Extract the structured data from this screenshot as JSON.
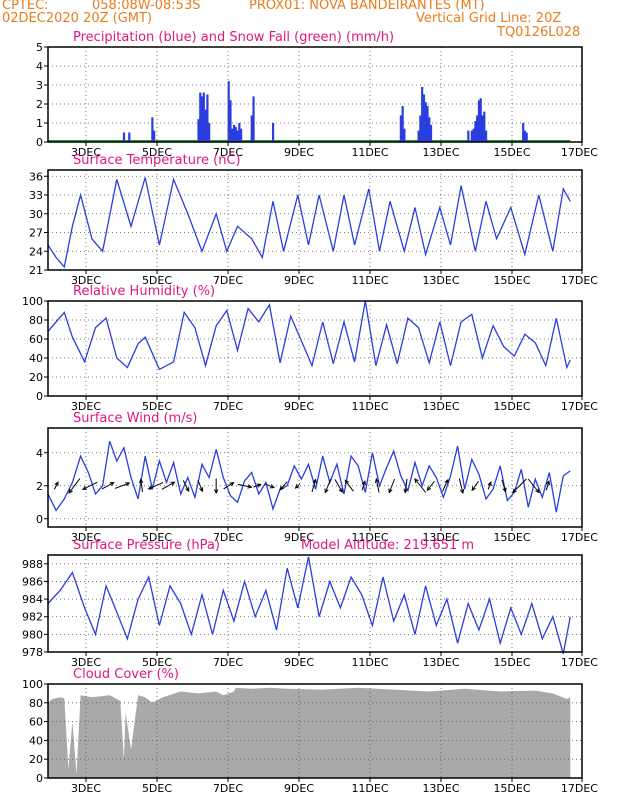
{
  "header": {
    "line1_left": "CPTEC:",
    "line1_coords": "058:08W-08:53S",
    "line1_station": "PROX01: NOVA BANDEIRANTES (MT)",
    "line2_left": "02DEC2020 20Z (GMT)",
    "line2_right": "Vertical Grid Line: 20Z",
    "line3_right": "TQ0126L028"
  },
  "colors": {
    "header": "#e87d1e",
    "title": "#e0177f",
    "series": "#2a3ee0",
    "snow": "#1a9e2c",
    "cloud": "#a9a9a9",
    "arrow": "#000000"
  },
  "chart_data": [
    {
      "type": "bar",
      "title": "Precipitation (blue) and Snow Fall (green) (mm/h)",
      "xlabel": "",
      "ylabel": "",
      "ylim": [
        0,
        5
      ],
      "yticks": [
        0,
        1,
        2,
        3,
        4,
        5
      ],
      "xlim_days": [
        2.4,
        17.0
      ],
      "xticks": [
        "3DEC",
        "5DEC",
        "7DEC",
        "9DEC",
        "11DEC",
        "13DEC",
        "15DEC",
        "17DEC"
      ],
      "grid": "dotted",
      "series": [
        {
          "color": "blue",
          "t": [
            4.4,
            4.55,
            5.2,
            5.25,
            6.5,
            6.55,
            6.6,
            6.65,
            6.7,
            6.75,
            6.8,
            7.35,
            7.4,
            7.45,
            7.5,
            7.55,
            7.6,
            7.65,
            7.7,
            8.0,
            8.05,
            8.6,
            12.2,
            12.25,
            12.3,
            12.7,
            12.75,
            12.8,
            12.85,
            12.9,
            12.95,
            13.0,
            13.05,
            14.1,
            14.2,
            14.25,
            14.3,
            14.35,
            14.4,
            14.45,
            14.5,
            14.55,
            14.6,
            15.65,
            15.7,
            15.75
          ],
          "values": [
            0.5,
            0.5,
            1.3,
            0.6,
            1.2,
            2.6,
            2.4,
            2.6,
            1.7,
            2.5,
            1.0,
            3.2,
            2.2,
            0.7,
            0.9,
            0.8,
            0.6,
            1.0,
            0.7,
            1.4,
            2.4,
            1.0,
            1.4,
            1.9,
            0.7,
            0.6,
            1.4,
            2.9,
            2.5,
            2.1,
            1.9,
            1.3,
            0.9,
            0.6,
            0.6,
            0.7,
            1.1,
            1.4,
            2.2,
            2.3,
            1.4,
            1.6,
            0.6,
            1.0,
            0.6,
            0.5
          ]
        },
        {
          "color": "green",
          "value": 0.05,
          "from": 2.4,
          "to": 17.0
        }
      ]
    },
    {
      "type": "line",
      "title": "Surface Temperature (nC)",
      "xlabel": "",
      "ylabel": "",
      "ylim": [
        21,
        37
      ],
      "yticks": [
        21,
        24,
        27,
        30,
        33,
        36
      ],
      "xlim_days": [
        2.4,
        17.0
      ],
      "xticks": [
        "3DEC",
        "5DEC",
        "7DEC",
        "9DEC",
        "11DEC",
        "13DEC",
        "15DEC",
        "17DEC"
      ],
      "grid": "dotted",
      "t": [
        2.4,
        2.6,
        2.8,
        3.0,
        3.2,
        3.5,
        3.8,
        4.2,
        4.6,
        5.0,
        5.4,
        5.8,
        6.2,
        6.6,
        7.0,
        7.3,
        7.6,
        8.0,
        8.3,
        8.6,
        8.9,
        9.3,
        9.6,
        9.9,
        10.3,
        10.6,
        10.9,
        11.3,
        11.6,
        11.9,
        12.3,
        12.6,
        12.9,
        13.3,
        13.6,
        13.9,
        14.3,
        14.6,
        14.9,
        15.3,
        15.7,
        16.1,
        16.5,
        16.8,
        17.0
      ],
      "values": [
        25.0,
        23.0,
        21.5,
        28.0,
        33.0,
        26.0,
        24.0,
        35.5,
        28.0,
        35.8,
        25.0,
        35.5,
        30.0,
        24.0,
        30.0,
        24.0,
        28.0,
        26.0,
        23.0,
        32.0,
        24.0,
        33.0,
        25.0,
        33.0,
        24.0,
        33.0,
        25.0,
        34.0,
        24.0,
        32.0,
        24.0,
        31.0,
        23.5,
        31.0,
        25.0,
        34.5,
        24.0,
        32.0,
        26.0,
        31.0,
        23.5,
        33.0,
        24.0,
        34.0,
        32.0
      ]
    },
    {
      "type": "line",
      "title": "Relative Humidity (%)",
      "xlabel": "",
      "ylabel": "",
      "ylim": [
        0,
        100
      ],
      "yticks": [
        0,
        20,
        40,
        60,
        80,
        100
      ],
      "xlim_days": [
        2.4,
        17.0
      ],
      "xticks": [
        "3DEC",
        "5DEC",
        "7DEC",
        "9DEC",
        "11DEC",
        "13DEC",
        "15DEC",
        "17DEC"
      ],
      "grid": "dotted",
      "t": [
        2.4,
        2.6,
        2.8,
        3.0,
        3.3,
        3.6,
        3.9,
        4.2,
        4.5,
        4.8,
        5.0,
        5.4,
        5.8,
        6.1,
        6.4,
        6.7,
        7.0,
        7.3,
        7.6,
        7.9,
        8.2,
        8.5,
        8.8,
        9.1,
        9.4,
        9.7,
        10.0,
        10.3,
        10.6,
        10.9,
        11.2,
        11.5,
        11.8,
        12.1,
        12.4,
        12.7,
        13.0,
        13.3,
        13.6,
        13.9,
        14.2,
        14.5,
        14.8,
        15.1,
        15.4,
        15.7,
        16.0,
        16.3,
        16.6,
        16.9,
        17.0
      ],
      "values": [
        68,
        78,
        88,
        62,
        36,
        72,
        82,
        40,
        30,
        55,
        62,
        28,
        36,
        88,
        72,
        32,
        74,
        90,
        48,
        92,
        78,
        96,
        35,
        84,
        58,
        32,
        78,
        34,
        78,
        36,
        100,
        32,
        75,
        34,
        82,
        72,
        35,
        78,
        32,
        78,
        86,
        40,
        74,
        52,
        42,
        65,
        56,
        32,
        82,
        30,
        38
      ]
    },
    {
      "type": "line",
      "title": "Surface Wind (m/s)",
      "xlabel": "",
      "ylabel": "",
      "ylim": [
        -0.5,
        5.5
      ],
      "yticks": [
        0,
        2,
        4
      ],
      "xlim_days": [
        2.4,
        17.0
      ],
      "xticks": [
        "3DEC",
        "5DEC",
        "7DEC",
        "9DEC",
        "11DEC",
        "13DEC",
        "15DEC",
        "17DEC"
      ],
      "grid": "dotted",
      "t": [
        2.4,
        2.6,
        2.8,
        3.0,
        3.2,
        3.4,
        3.6,
        3.8,
        4.0,
        4.2,
        4.4,
        4.6,
        4.8,
        5.0,
        5.2,
        5.4,
        5.6,
        5.8,
        6.0,
        6.2,
        6.4,
        6.6,
        6.8,
        7.0,
        7.2,
        7.4,
        7.6,
        7.8,
        8.0,
        8.2,
        8.4,
        8.6,
        8.8,
        9.0,
        9.2,
        9.4,
        9.6,
        9.8,
        10.0,
        10.2,
        10.4,
        10.6,
        10.8,
        11.0,
        11.2,
        11.4,
        11.6,
        11.8,
        12.0,
        12.2,
        12.4,
        12.6,
        12.8,
        13.0,
        13.2,
        13.4,
        13.6,
        13.8,
        14.0,
        14.2,
        14.4,
        14.6,
        14.8,
        15.0,
        15.2,
        15.4,
        15.6,
        15.8,
        16.0,
        16.2,
        16.4,
        16.6,
        16.8,
        17.0
      ],
      "values": [
        1.5,
        0.5,
        1.2,
        2.2,
        3.8,
        2.8,
        1.5,
        2.0,
        4.7,
        3.5,
        4.3,
        2.5,
        1.2,
        3.8,
        1.8,
        3.5,
        2.2,
        3.4,
        1.5,
        2.5,
        1.3,
        3.3,
        2.5,
        4.2,
        2.5,
        1.4,
        1.0,
        2.3,
        2.8,
        1.5,
        2.2,
        0.6,
        1.8,
        2.0,
        3.2,
        2.4,
        3.3,
        1.8,
        3.8,
        2.2,
        3.3,
        1.5,
        3.8,
        3.2,
        1.6,
        4.0,
        2.0,
        3.1,
        4.1,
        2.6,
        1.7,
        3.4,
        2.0,
        3.2,
        2.5,
        1.3,
        2.6,
        4.4,
        1.8,
        3.6,
        2.7,
        1.2,
        1.8,
        3.2,
        1.1,
        1.6,
        3.0,
        0.7,
        2.4,
        1.3,
        2.8,
        0.4,
        2.6,
        2.9
      ],
      "arrows": {
        "t": [
          2.6,
          3.05,
          3.45,
          3.95,
          4.35,
          4.9,
          5.3,
          5.65,
          6.15,
          6.55,
          7.0,
          7.35,
          7.8,
          8.15,
          8.5,
          8.9,
          9.3,
          9.75,
          10.15,
          10.45,
          10.75,
          11.15,
          11.55,
          11.95,
          12.35,
          12.75,
          13.05,
          13.45,
          13.9,
          14.3,
          14.7,
          15.1,
          15.55,
          15.95,
          16.35
        ],
        "u": [
          0.4,
          -1.2,
          -1.6,
          1.3,
          1.6,
          -0.2,
          -1.6,
          1.4,
          0.6,
          0.5,
          0.0,
          1.1,
          1.5,
          0.8,
          1.0,
          -0.8,
          -0.5,
          0.4,
          -0.6,
          0.8,
          -0.9,
          0.3,
          -0.3,
          -0.6,
          -0.2,
          -1.2,
          -0.8,
          0.6,
          0.4,
          -0.7,
          0.3,
          0.4,
          -1.5,
          1.2,
          0.3
        ],
        "v": [
          0.8,
          -1.6,
          -0.8,
          0.7,
          0.6,
          1.4,
          -0.7,
          0.8,
          -1.2,
          -1.2,
          -1.6,
          0.7,
          -0.3,
          0.3,
          -0.4,
          -0.9,
          -0.5,
          1.4,
          -1.5,
          -1.4,
          1.2,
          1.0,
          1.5,
          -1.5,
          -1.5,
          1.5,
          -1.0,
          1.3,
          -1.6,
          -1.0,
          0.8,
          -1.3,
          -1.5,
          -1.5,
          1.0
        ]
      }
    },
    {
      "type": "line",
      "title": "Surface Pressure (hPa)",
      "annotation": "Model Altitude: 219.651 m",
      "xlabel": "",
      "ylabel": "",
      "ylim": [
        978,
        989
      ],
      "yticks": [
        978,
        980,
        982,
        984,
        986,
        988
      ],
      "xlim_days": [
        2.4,
        17.0
      ],
      "xticks": [
        "3DEC",
        "5DEC",
        "7DEC",
        "9DEC",
        "11DEC",
        "13DEC",
        "15DEC",
        "17DEC"
      ],
      "grid": "dotted",
      "t": [
        2.4,
        2.7,
        3.0,
        3.3,
        3.6,
        3.9,
        4.2,
        4.5,
        4.8,
        5.1,
        5.4,
        5.7,
        6.0,
        6.3,
        6.6,
        6.9,
        7.2,
        7.5,
        7.8,
        8.1,
        8.4,
        8.7,
        9.0,
        9.3,
        9.6,
        9.9,
        10.2,
        10.5,
        10.8,
        11.1,
        11.4,
        11.7,
        12.0,
        12.3,
        12.6,
        12.9,
        13.2,
        13.5,
        13.8,
        14.1,
        14.4,
        14.7,
        15.0,
        15.3,
        15.6,
        15.9,
        16.2,
        16.5,
        16.8,
        17.0
      ],
      "values": [
        983.5,
        985.0,
        987.0,
        983.0,
        980.0,
        985.5,
        982.5,
        979.5,
        984.0,
        986.5,
        981.0,
        985.5,
        983.5,
        980.0,
        984.5,
        980.0,
        985.0,
        981.5,
        986.0,
        982.0,
        985.0,
        980.5,
        987.5,
        983.0,
        988.8,
        982.0,
        986.0,
        983.0,
        986.5,
        984.5,
        981.0,
        986.5,
        981.5,
        984.5,
        980.0,
        985.5,
        981.0,
        984.0,
        979.0,
        983.5,
        980.5,
        984.0,
        979.0,
        983.0,
        980.0,
        983.5,
        979.5,
        982.0,
        977.8,
        982.0
      ]
    },
    {
      "type": "area",
      "title": "Cloud Cover (%)",
      "xlabel": "",
      "ylabel": "",
      "ylim": [
        0,
        100
      ],
      "yticks": [
        0,
        20,
        40,
        60,
        80,
        100
      ],
      "xlim_days": [
        2.4,
        17.0
      ],
      "xticks": [
        "3DEC",
        "5DEC",
        "7DEC",
        "9DEC",
        "11DEC",
        "13DEC",
        "15DEC",
        "17DEC"
      ],
      "grid": "dotted",
      "t": [
        2.4,
        2.5,
        2.7,
        2.8,
        2.9,
        3.0,
        3.1,
        3.2,
        3.5,
        4.0,
        4.3,
        4.4,
        4.45,
        4.6,
        4.8,
        5.0,
        5.2,
        5.5,
        6.0,
        6.5,
        7.0,
        7.2,
        7.5,
        7.55,
        8.0,
        8.5,
        9.0,
        10.0,
        11.0,
        12.0,
        13.0,
        14.0,
        15.0,
        16.0,
        16.5,
        16.9,
        17.0
      ],
      "values": [
        80,
        84,
        86,
        85,
        10,
        60,
        4,
        88,
        86,
        88,
        82,
        20,
        70,
        30,
        88,
        86,
        80,
        86,
        92,
        90,
        92,
        88,
        92,
        96,
        95,
        96,
        95,
        94,
        96,
        94,
        92,
        95,
        92,
        93,
        90,
        84,
        86
      ]
    }
  ]
}
